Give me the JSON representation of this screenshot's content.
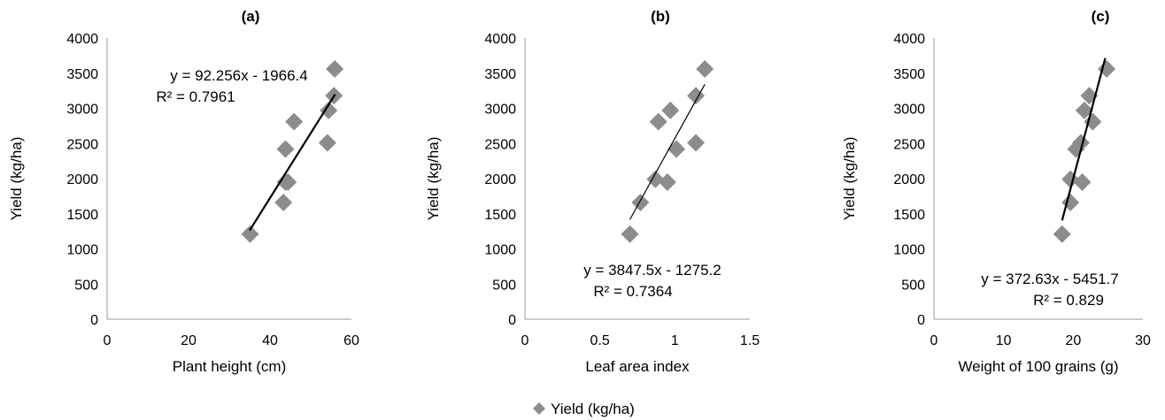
{
  "chart_data": [
    {
      "type": "scatter",
      "title": "(a)",
      "xlabel": "Plant height (cm)",
      "ylabel": "Yield (kg/ha)",
      "xlim": [
        0,
        60
      ],
      "ylim": [
        0,
        4000
      ],
      "xticks": [
        "0",
        "20",
        "40",
        "60"
      ],
      "yticks": [
        "0",
        "500",
        "1000",
        "1500",
        "2000",
        "2500",
        "3000",
        "3500",
        "4000"
      ],
      "points": [
        {
          "x": 35.1,
          "y": 1210
        },
        {
          "x": 43.3,
          "y": 1660
        },
        {
          "x": 43.8,
          "y": 1950
        },
        {
          "x": 44.4,
          "y": 1950
        },
        {
          "x": 43.8,
          "y": 2420
        },
        {
          "x": 45.9,
          "y": 2810
        },
        {
          "x": 54.1,
          "y": 2510
        },
        {
          "x": 54.4,
          "y": 2970
        },
        {
          "x": 55.7,
          "y": 3180
        },
        {
          "x": 55.9,
          "y": 3560
        }
      ],
      "trendline": {
        "slope": 92.256,
        "intercept": -1966.4,
        "x_range": [
          35,
          56
        ]
      },
      "equation": "y = 92.256x - 1966.4",
      "r2": "R² = 0.7961"
    },
    {
      "type": "scatter",
      "title": "(b)",
      "xlabel": "Leaf area index",
      "ylabel": "Yield (kg/ha)",
      "xlim": [
        0,
        1.5
      ],
      "ylim": [
        0,
        4000
      ],
      "xticks": [
        "0",
        "0.5",
        "1",
        "1.5"
      ],
      "yticks": [
        "0",
        "500",
        "1000",
        "1500",
        "2000",
        "2500",
        "3000",
        "3500",
        "4000"
      ],
      "points": [
        {
          "x": 0.7,
          "y": 1210
        },
        {
          "x": 0.77,
          "y": 1660
        },
        {
          "x": 0.87,
          "y": 1990
        },
        {
          "x": 0.95,
          "y": 1950
        },
        {
          "x": 0.89,
          "y": 2810
        },
        {
          "x": 0.97,
          "y": 2970
        },
        {
          "x": 1.01,
          "y": 2420
        },
        {
          "x": 1.14,
          "y": 2510
        },
        {
          "x": 1.14,
          "y": 3180
        },
        {
          "x": 1.2,
          "y": 3560
        }
      ],
      "trendline": {
        "slope": 3847.5,
        "intercept": -1275.2,
        "x_range": [
          0.7,
          1.2
        ]
      },
      "equation": "y = 3847.5x - 1275.2",
      "r2": "R² = 0.7364"
    },
    {
      "type": "scatter",
      "title": "(c)",
      "xlabel": "Weight of 100 grains (g)",
      "ylabel": "Yield (kg/ha)",
      "xlim": [
        0,
        30
      ],
      "ylim": [
        0,
        4000
      ],
      "xticks": [
        "0",
        "10",
        "20",
        "30"
      ],
      "yticks": [
        "0",
        "500",
        "1000",
        "1500",
        "2000",
        "2500",
        "3000",
        "3500",
        "4000"
      ],
      "points": [
        {
          "x": 18.4,
          "y": 1210
        },
        {
          "x": 19.6,
          "y": 1660
        },
        {
          "x": 19.6,
          "y": 1990
        },
        {
          "x": 21.3,
          "y": 1950
        },
        {
          "x": 20.4,
          "y": 2420
        },
        {
          "x": 21.1,
          "y": 2510
        },
        {
          "x": 21.6,
          "y": 2970
        },
        {
          "x": 22.8,
          "y": 2810
        },
        {
          "x": 22.3,
          "y": 3180
        },
        {
          "x": 24.8,
          "y": 3560
        }
      ],
      "trendline": {
        "slope": 372.63,
        "intercept": -5451.7,
        "x_range": [
          18.4,
          24.6
        ]
      },
      "equation": "y = 372.63x - 5451.7",
      "r2": "R² = 0.829"
    }
  ],
  "legend": {
    "label": "Yield (kg/ha)",
    "color": "#8c8c8c",
    "position": "bottom-center"
  },
  "colors": {
    "marker": "#8c8c8c",
    "trendline": "#000000",
    "axis": "#9a9a9a"
  }
}
